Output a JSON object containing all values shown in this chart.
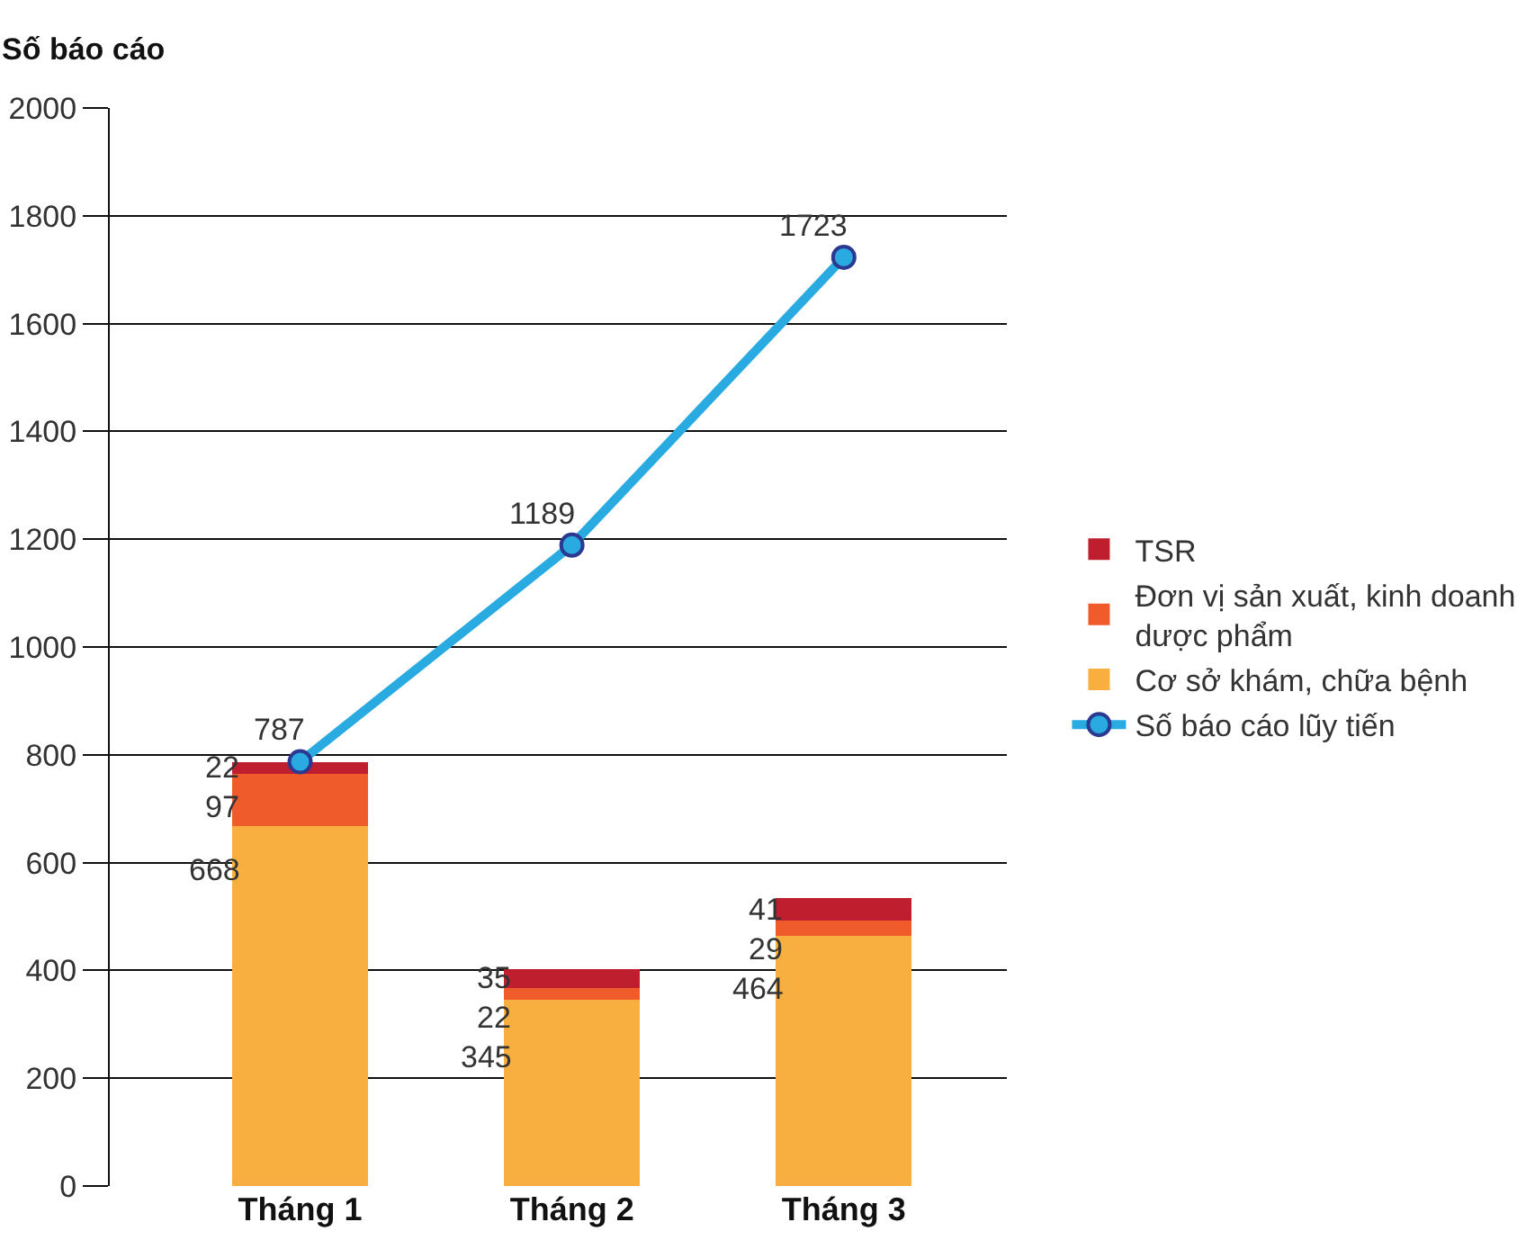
{
  "chart_data": {
    "type": "bar",
    "stacked": true,
    "ylabel": "Số báo cáo",
    "categories": [
      "Tháng 1",
      "Tháng 2",
      "Tháng 3"
    ],
    "series": [
      {
        "name": "Cơ sở khám, chữa bệnh",
        "color": "#f9ae40",
        "values": [
          668,
          345,
          464
        ]
      },
      {
        "name": "Đơn vị sản xuất, kinh doanh dược phẩm",
        "color": "#ef5b2a",
        "values": [
          97,
          22,
          29
        ]
      },
      {
        "name": "TSR",
        "color": "#be1e2d",
        "values": [
          22,
          35,
          41
        ]
      },
      {
        "name": "Số báo cáo lũy tiến",
        "type": "line",
        "color": "#29aae1",
        "values": [
          787,
          1189,
          1723
        ],
        "marker": "circle"
      }
    ],
    "ylim": [
      0,
      2000
    ],
    "yticks": [
      0,
      200,
      400,
      600,
      800,
      1000,
      1200,
      1400,
      1600,
      1800,
      2000
    ],
    "grid": "y",
    "legend": "right",
    "data_labels": true
  }
}
